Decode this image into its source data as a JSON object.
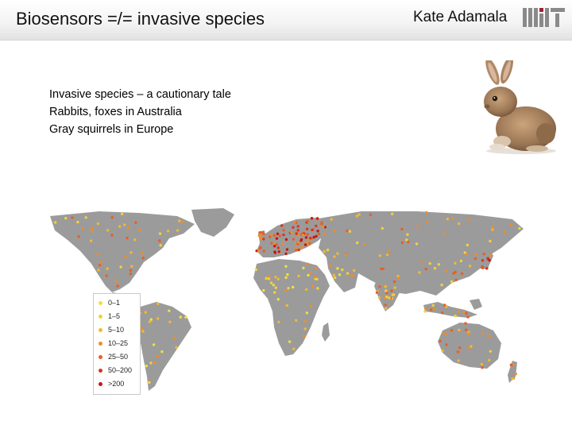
{
  "slide": {
    "title": "Biosensors =/= invasive species",
    "author": "Kate Adamala",
    "logo_label": "MIT"
  },
  "bullets": [
    {
      "bold": "Invasive species",
      "rest": " – a cautionary tale"
    },
    {
      "text": "Rabbits, foxes in Australia"
    },
    {
      "text": "Gray squirrels in Europe"
    }
  ],
  "map": {
    "legend": [
      {
        "label": "0–1",
        "color": "#f0e040"
      },
      {
        "label": "1–5",
        "color": "#f3d23a"
      },
      {
        "label": "5–10",
        "color": "#f3b833"
      },
      {
        "label": "10–25",
        "color": "#ee8d2a"
      },
      {
        "label": "25–50",
        "color": "#e85f23"
      },
      {
        "label": "50–200",
        "color": "#df341c"
      },
      {
        "label": ">200",
        "color": "#c91515"
      }
    ]
  },
  "colors": {
    "land": "#9b9b9b",
    "logo_dark": "#8a8a8a",
    "logo_red": "#a31f34"
  }
}
